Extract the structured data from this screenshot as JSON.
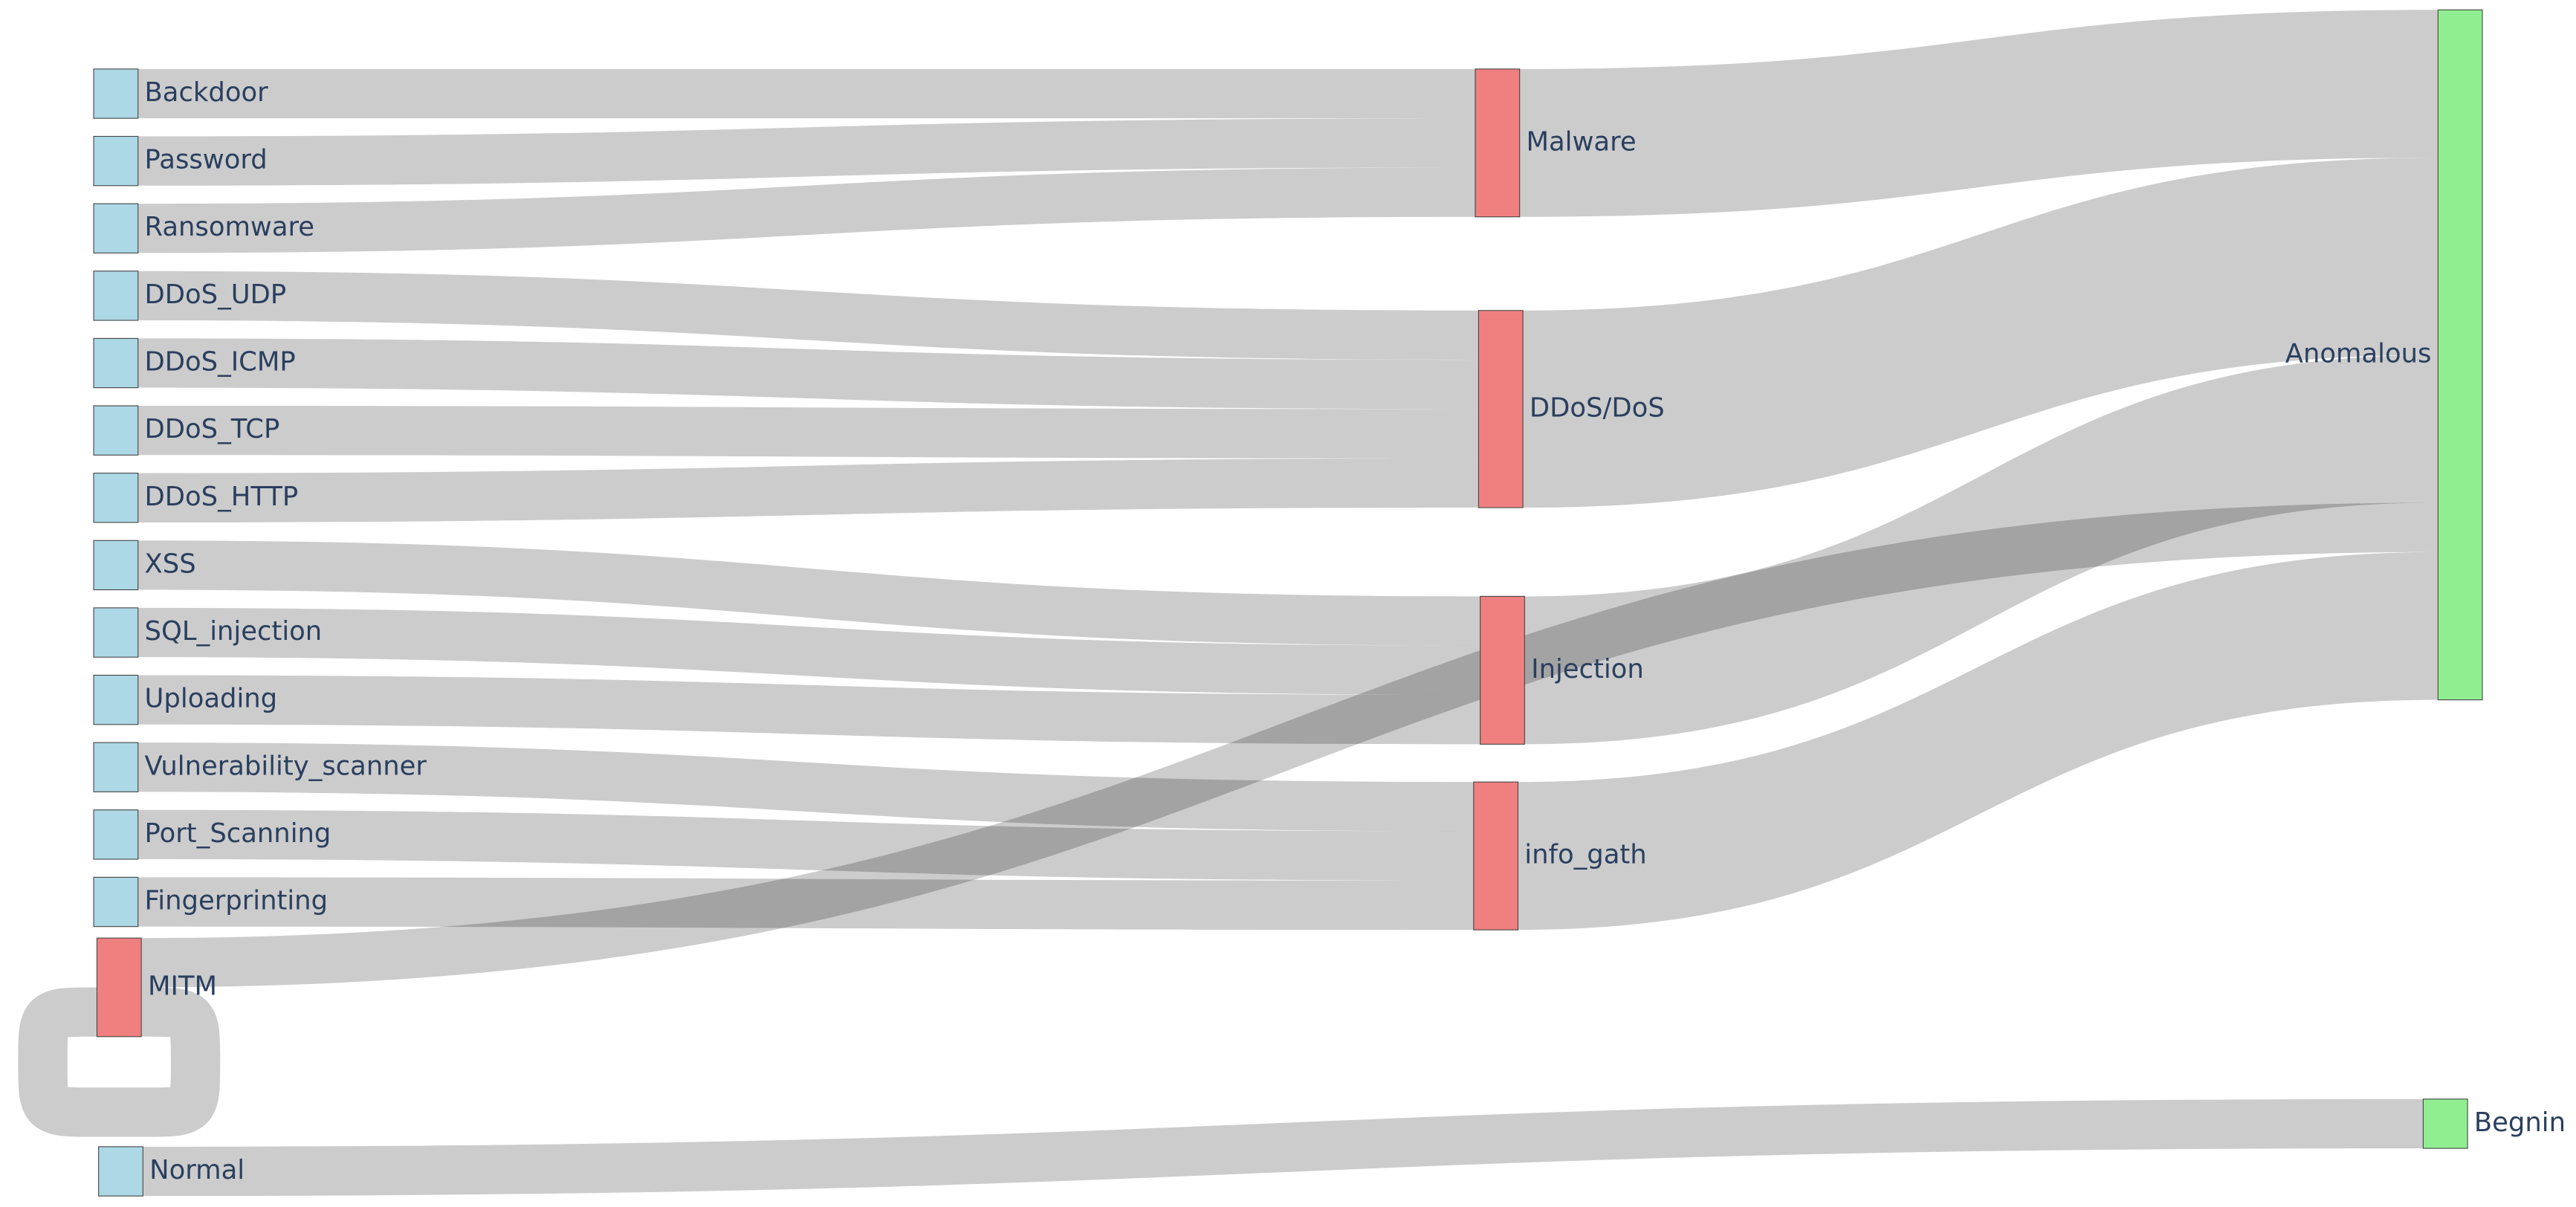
{
  "chart_data": {
    "type": "sankey",
    "link_color": "rgba(0,0,0,0.2)",
    "nodes": [
      {
        "label": "Backdoor",
        "color": "#add8e6"
      },
      {
        "label": "Password",
        "color": "#add8e6"
      },
      {
        "label": "Ransomware",
        "color": "#add8e6"
      },
      {
        "label": "DDoS_UDP",
        "color": "#add8e6"
      },
      {
        "label": "DDoS_ICMP",
        "color": "#add8e6"
      },
      {
        "label": "DDoS_TCP",
        "color": "#add8e6"
      },
      {
        "label": "DDoS_HTTP",
        "color": "#add8e6"
      },
      {
        "label": "XSS",
        "color": "#add8e6"
      },
      {
        "label": "SQL_injection",
        "color": "#add8e6"
      },
      {
        "label": "Uploading",
        "color": "#add8e6"
      },
      {
        "label": "Vulnerability_scanner",
        "color": "#add8e6"
      },
      {
        "label": "Port_Scanning",
        "color": "#add8e6"
      },
      {
        "label": "Fingerprinting",
        "color": "#add8e6"
      },
      {
        "label": "MITM",
        "color": "#f08080"
      },
      {
        "label": "Normal",
        "color": "#add8e6"
      },
      {
        "label": "Malware",
        "color": "#f08080"
      },
      {
        "label": "DDoS/DoS",
        "color": "#f08080"
      },
      {
        "label": "Injection",
        "color": "#f08080"
      },
      {
        "label": "info_gath",
        "color": "#f08080"
      },
      {
        "label": "Anomalous",
        "color": "#90ee90"
      },
      {
        "label": "Begnin",
        "color": "#90ee90"
      }
    ],
    "links": [
      {
        "source": 0,
        "target": 15,
        "value": 1
      },
      {
        "source": 1,
        "target": 15,
        "value": 1
      },
      {
        "source": 2,
        "target": 15,
        "value": 1
      },
      {
        "source": 3,
        "target": 16,
        "value": 1
      },
      {
        "source": 4,
        "target": 16,
        "value": 1
      },
      {
        "source": 5,
        "target": 16,
        "value": 1
      },
      {
        "source": 6,
        "target": 16,
        "value": 1
      },
      {
        "source": 7,
        "target": 17,
        "value": 1
      },
      {
        "source": 8,
        "target": 17,
        "value": 1
      },
      {
        "source": 9,
        "target": 17,
        "value": 1
      },
      {
        "source": 10,
        "target": 18,
        "value": 1
      },
      {
        "source": 11,
        "target": 18,
        "value": 1
      },
      {
        "source": 12,
        "target": 18,
        "value": 1
      },
      {
        "source": 15,
        "target": 19,
        "value": 3
      },
      {
        "source": 16,
        "target": 19,
        "value": 4
      },
      {
        "source": 17,
        "target": 19,
        "value": 3
      },
      {
        "source": 13,
        "target": 19,
        "value": 1
      },
      {
        "source": 18,
        "target": 19,
        "value": 3
      },
      {
        "source": 13,
        "target": 13,
        "value": 1
      },
      {
        "source": 14,
        "target": 20,
        "value": 1
      }
    ]
  }
}
